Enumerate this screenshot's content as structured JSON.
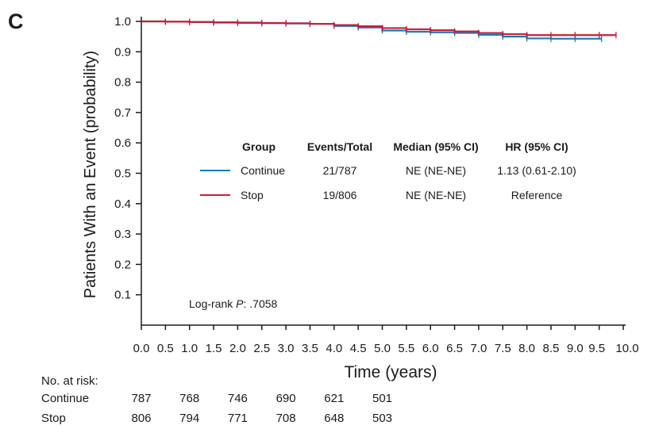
{
  "panel_label": "C",
  "colors": {
    "continue": "#1a7ab5",
    "stop": "#c0223b",
    "axis": "#1a1a1a"
  },
  "chart_data": {
    "type": "line",
    "subtype": "kaplan-meier",
    "ylabel": "Patients With an Event (probability)",
    "xlabel": "Time (years)",
    "xlim": [
      0,
      10
    ],
    "ylim": [
      0,
      1.0
    ],
    "x_ticks": [
      "0.0",
      "0.5",
      "1.0",
      "1.5",
      "2.0",
      "2.5",
      "3.0",
      "3.5",
      "4.0",
      "4.5",
      "5.0",
      "5.5",
      "6.0",
      "6.5",
      "7.0",
      "7.5",
      "8.0",
      "8.5",
      "9.0",
      "9.5",
      "10.0"
    ],
    "y_ticks": [
      "0.1",
      "0.2",
      "0.3",
      "0.4",
      "0.5",
      "0.6",
      "0.7",
      "0.8",
      "0.9",
      "1.0"
    ],
    "series": [
      {
        "name": "Continue",
        "color_key": "continue",
        "x": [
          0,
          0.5,
          1.0,
          1.5,
          2.0,
          2.5,
          3.0,
          3.5,
          4.0,
          4.5,
          5.0,
          5.5,
          6.0,
          6.5,
          7.0,
          7.5,
          8.0,
          8.5,
          9.0,
          9.55
        ],
        "y": [
          1.0,
          0.999,
          0.998,
          0.996,
          0.995,
          0.994,
          0.993,
          0.992,
          0.985,
          0.98,
          0.97,
          0.966,
          0.964,
          0.962,
          0.956,
          0.95,
          0.944,
          0.943,
          0.943,
          0.943
        ]
      },
      {
        "name": "Stop",
        "color_key": "stop",
        "x": [
          0,
          0.5,
          1.0,
          1.5,
          2.0,
          2.5,
          3.0,
          3.5,
          4.0,
          4.5,
          5.0,
          5.5,
          6.0,
          6.5,
          7.0,
          7.5,
          8.0,
          8.5,
          9.0,
          9.5,
          9.85
        ],
        "y": [
          1.0,
          0.999,
          0.998,
          0.997,
          0.996,
          0.995,
          0.994,
          0.992,
          0.988,
          0.984,
          0.978,
          0.974,
          0.971,
          0.967,
          0.962,
          0.958,
          0.955,
          0.955,
          0.955,
          0.955,
          0.955
        ]
      }
    ],
    "legend": {
      "headers": [
        "Group",
        "Events/Total",
        "Median (95% CI)",
        "HR (95% CI)"
      ],
      "rows": [
        {
          "group": "Continue",
          "events": "21/787",
          "median": "NE (NE-NE)",
          "hr": "1.13 (0.61-2.10)",
          "color_key": "continue"
        },
        {
          "group": "Stop",
          "events": "19/806",
          "median": "NE (NE-NE)",
          "hr": "Reference",
          "color_key": "stop"
        }
      ]
    },
    "annotation": {
      "prefix": "Log-rank ",
      "italic": "P",
      "suffix": ": .7058"
    }
  },
  "risk_table": {
    "title": "No. at risk:",
    "rows": [
      {
        "label": "Continue",
        "values": [
          "787",
          "768",
          "746",
          "690",
          "621",
          "501"
        ]
      },
      {
        "label": "Stop",
        "values": [
          "806",
          "794",
          "771",
          "708",
          "648",
          "503"
        ]
      }
    ]
  }
}
